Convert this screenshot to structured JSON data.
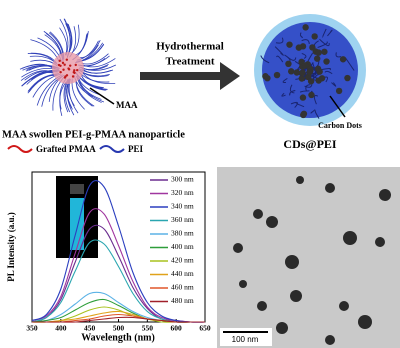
{
  "scheme": {
    "left_caption": "MAA swollen PEI-g-PMAA nanoparticle",
    "maa_label": "MAA",
    "legend_pmaa": "Grafted PMAA",
    "legend_pei": "PEI",
    "arrow_line1": "Hydrothermal",
    "arrow_line2": "Treatment",
    "right_caption": "CDs@PEI",
    "dots_label": "Carbon Dots"
  },
  "tem": {
    "scale_bar": "100 nm"
  },
  "chart_data": {
    "type": "line",
    "xlabel": "Wavelength (nm)",
    "ylabel": "PL Intensity (a.u.)",
    "x": [
      350,
      375,
      400,
      425,
      450,
      475,
      500,
      525,
      550,
      575,
      600,
      625,
      650
    ],
    "xlim": [
      350,
      650
    ],
    "xticks": [
      350,
      400,
      450,
      500,
      550,
      600,
      650
    ],
    "ylim": [
      0,
      100
    ],
    "series": [
      {
        "name": "300 nm",
        "color": "#6b2d8f",
        "values": [
          0,
          3,
          15,
          40,
          62,
          62,
          44,
          23,
          9,
          2,
          1,
          0,
          0
        ]
      },
      {
        "name": "320 nm",
        "color": "#a0369f",
        "values": [
          1,
          4,
          17,
          46,
          73,
          72,
          51,
          27,
          10,
          3,
          1,
          0,
          0
        ]
      },
      {
        "name": "340 nm",
        "color": "#2b3fbf",
        "values": [
          1,
          5,
          22,
          58,
          91,
          90,
          64,
          33,
          13,
          4,
          1,
          0,
          0
        ]
      },
      {
        "name": "360 nm",
        "color": "#2aa6b0",
        "values": [
          0,
          3,
          13,
          34,
          53,
          52,
          37,
          19,
          7,
          2,
          0,
          0,
          0
        ]
      },
      {
        "name": "380 nm",
        "color": "#5bb2e6",
        "values": [
          0,
          1,
          5,
          12,
          19,
          19,
          13,
          7,
          3,
          1,
          0,
          0,
          0
        ]
      },
      {
        "name": "400 nm",
        "color": "#2e9e3a",
        "values": [
          0,
          1,
          3,
          8,
          13,
          15,
          11,
          6,
          2,
          1,
          0,
          0,
          0
        ]
      },
      {
        "name": "420 nm",
        "color": "#a8c21e",
        "values": [
          0,
          0,
          1,
          4,
          8,
          10,
          8,
          4,
          2,
          0,
          0,
          0,
          0
        ]
      },
      {
        "name": "440 nm",
        "color": "#e0a21a",
        "values": [
          0,
          0,
          1,
          2,
          4,
          6,
          7,
          5,
          2,
          1,
          0,
          0,
          0
        ]
      },
      {
        "name": "460 nm",
        "color": "#e0562a",
        "values": [
          0,
          0,
          0,
          1,
          2,
          4,
          5,
          4,
          2,
          1,
          0,
          0,
          0
        ]
      },
      {
        "name": "480 nm",
        "color": "#a0202a",
        "values": [
          0,
          0,
          0,
          0,
          1,
          2,
          3,
          3,
          2,
          1,
          0,
          0,
          0
        ]
      }
    ]
  }
}
